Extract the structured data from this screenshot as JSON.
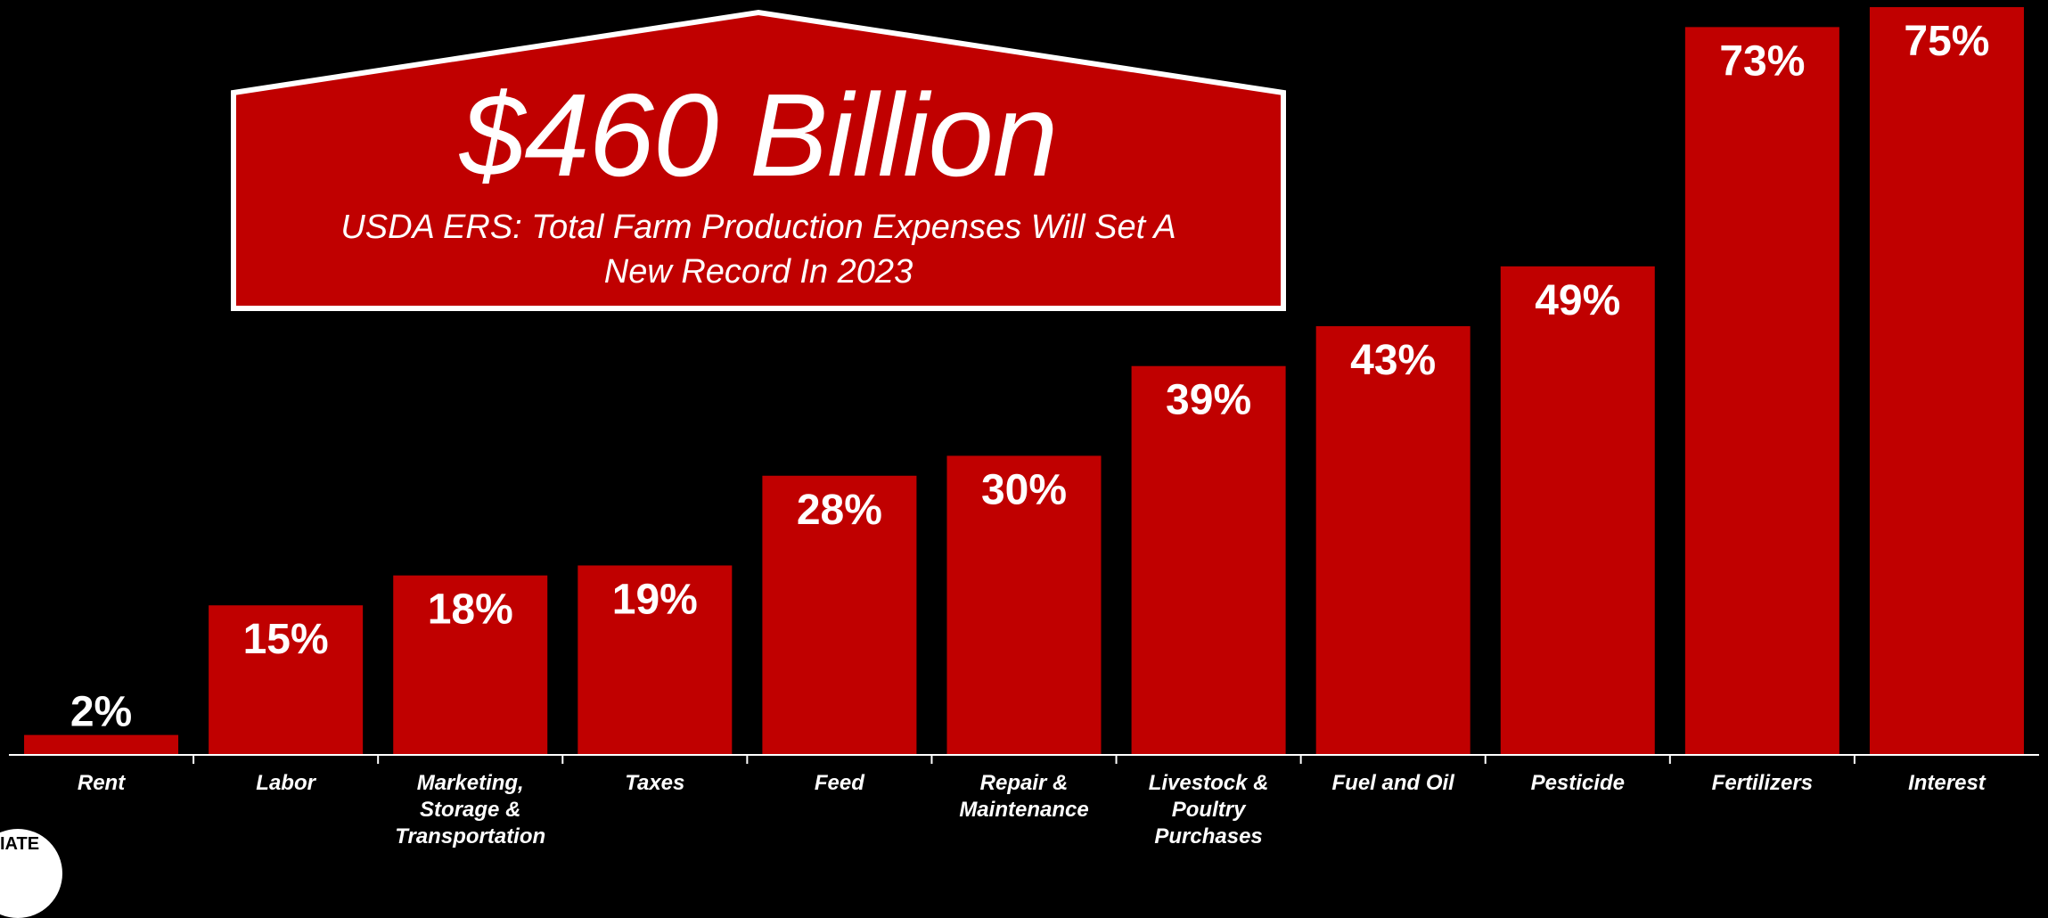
{
  "callout": {
    "headline": "$460 Billion",
    "subtitle": "USDA ERS: Total Farm Production Expenses Will Set A New Record In 2023"
  },
  "logo": {
    "text": "IATE"
  },
  "colors": {
    "background": "#000000",
    "bar": "#C00000",
    "text": "#FFFFFF"
  },
  "chart_data": {
    "type": "bar",
    "categories": [
      "Rent",
      "Labor",
      "Marketing, Storage & Transportation",
      "Taxes",
      "Feed",
      "Repair & Maintenance",
      "Livestock & Poultry Purchases",
      "Fuel and Oil",
      "Pesticide",
      "Fertilizers",
      "Interest"
    ],
    "category_lines": [
      [
        "Rent"
      ],
      [
        "Labor"
      ],
      [
        "Marketing,",
        "Storage &",
        "Transportation"
      ],
      [
        "Taxes"
      ],
      [
        "Feed"
      ],
      [
        "Repair &",
        "Maintenance"
      ],
      [
        "Livestock &",
        "Poultry",
        "Purchases"
      ],
      [
        "Fuel and Oil"
      ],
      [
        "Pesticide"
      ],
      [
        "Fertilizers"
      ],
      [
        "Interest"
      ]
    ],
    "values": [
      2,
      15,
      18,
      19,
      28,
      30,
      39,
      43,
      49,
      73,
      75
    ],
    "data_labels": [
      "2%",
      "15%",
      "18%",
      "19%",
      "28%",
      "30%",
      "39%",
      "43%",
      "49%",
      "73%",
      "75%"
    ],
    "ylim": [
      0,
      75
    ],
    "grid": false,
    "legend": "none"
  }
}
